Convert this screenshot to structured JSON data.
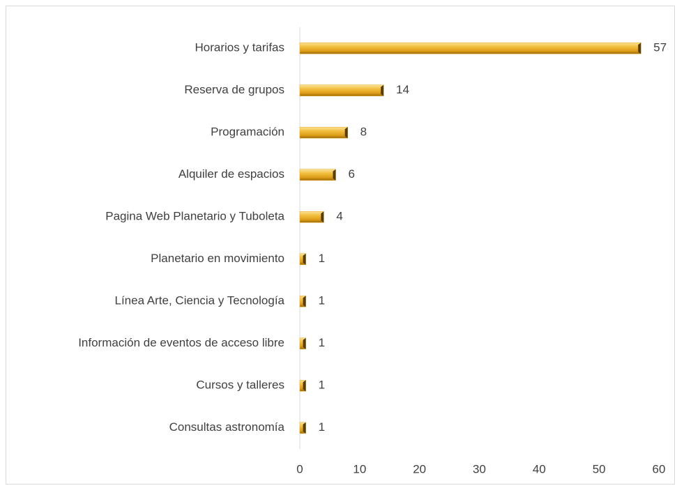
{
  "chart_data": {
    "type": "bar",
    "orientation": "horizontal",
    "categories": [
      "Horarios y tarifas",
      "Reserva de grupos",
      "Programación",
      "Alquiler de espacios",
      "Pagina Web Planetario y Tuboleta",
      "Planetario en movimiento",
      "Línea Arte, Ciencia y Tecnología",
      "Información de eventos de acceso libre",
      "Cursos y talleres",
      "Consultas astronomía"
    ],
    "values": [
      57,
      14,
      8,
      6,
      4,
      1,
      1,
      1,
      1,
      1
    ],
    "color": "#e8a820",
    "xlim": [
      0,
      60
    ],
    "xticks": [
      0,
      10,
      20,
      30,
      40,
      50,
      60
    ],
    "grid": false
  }
}
